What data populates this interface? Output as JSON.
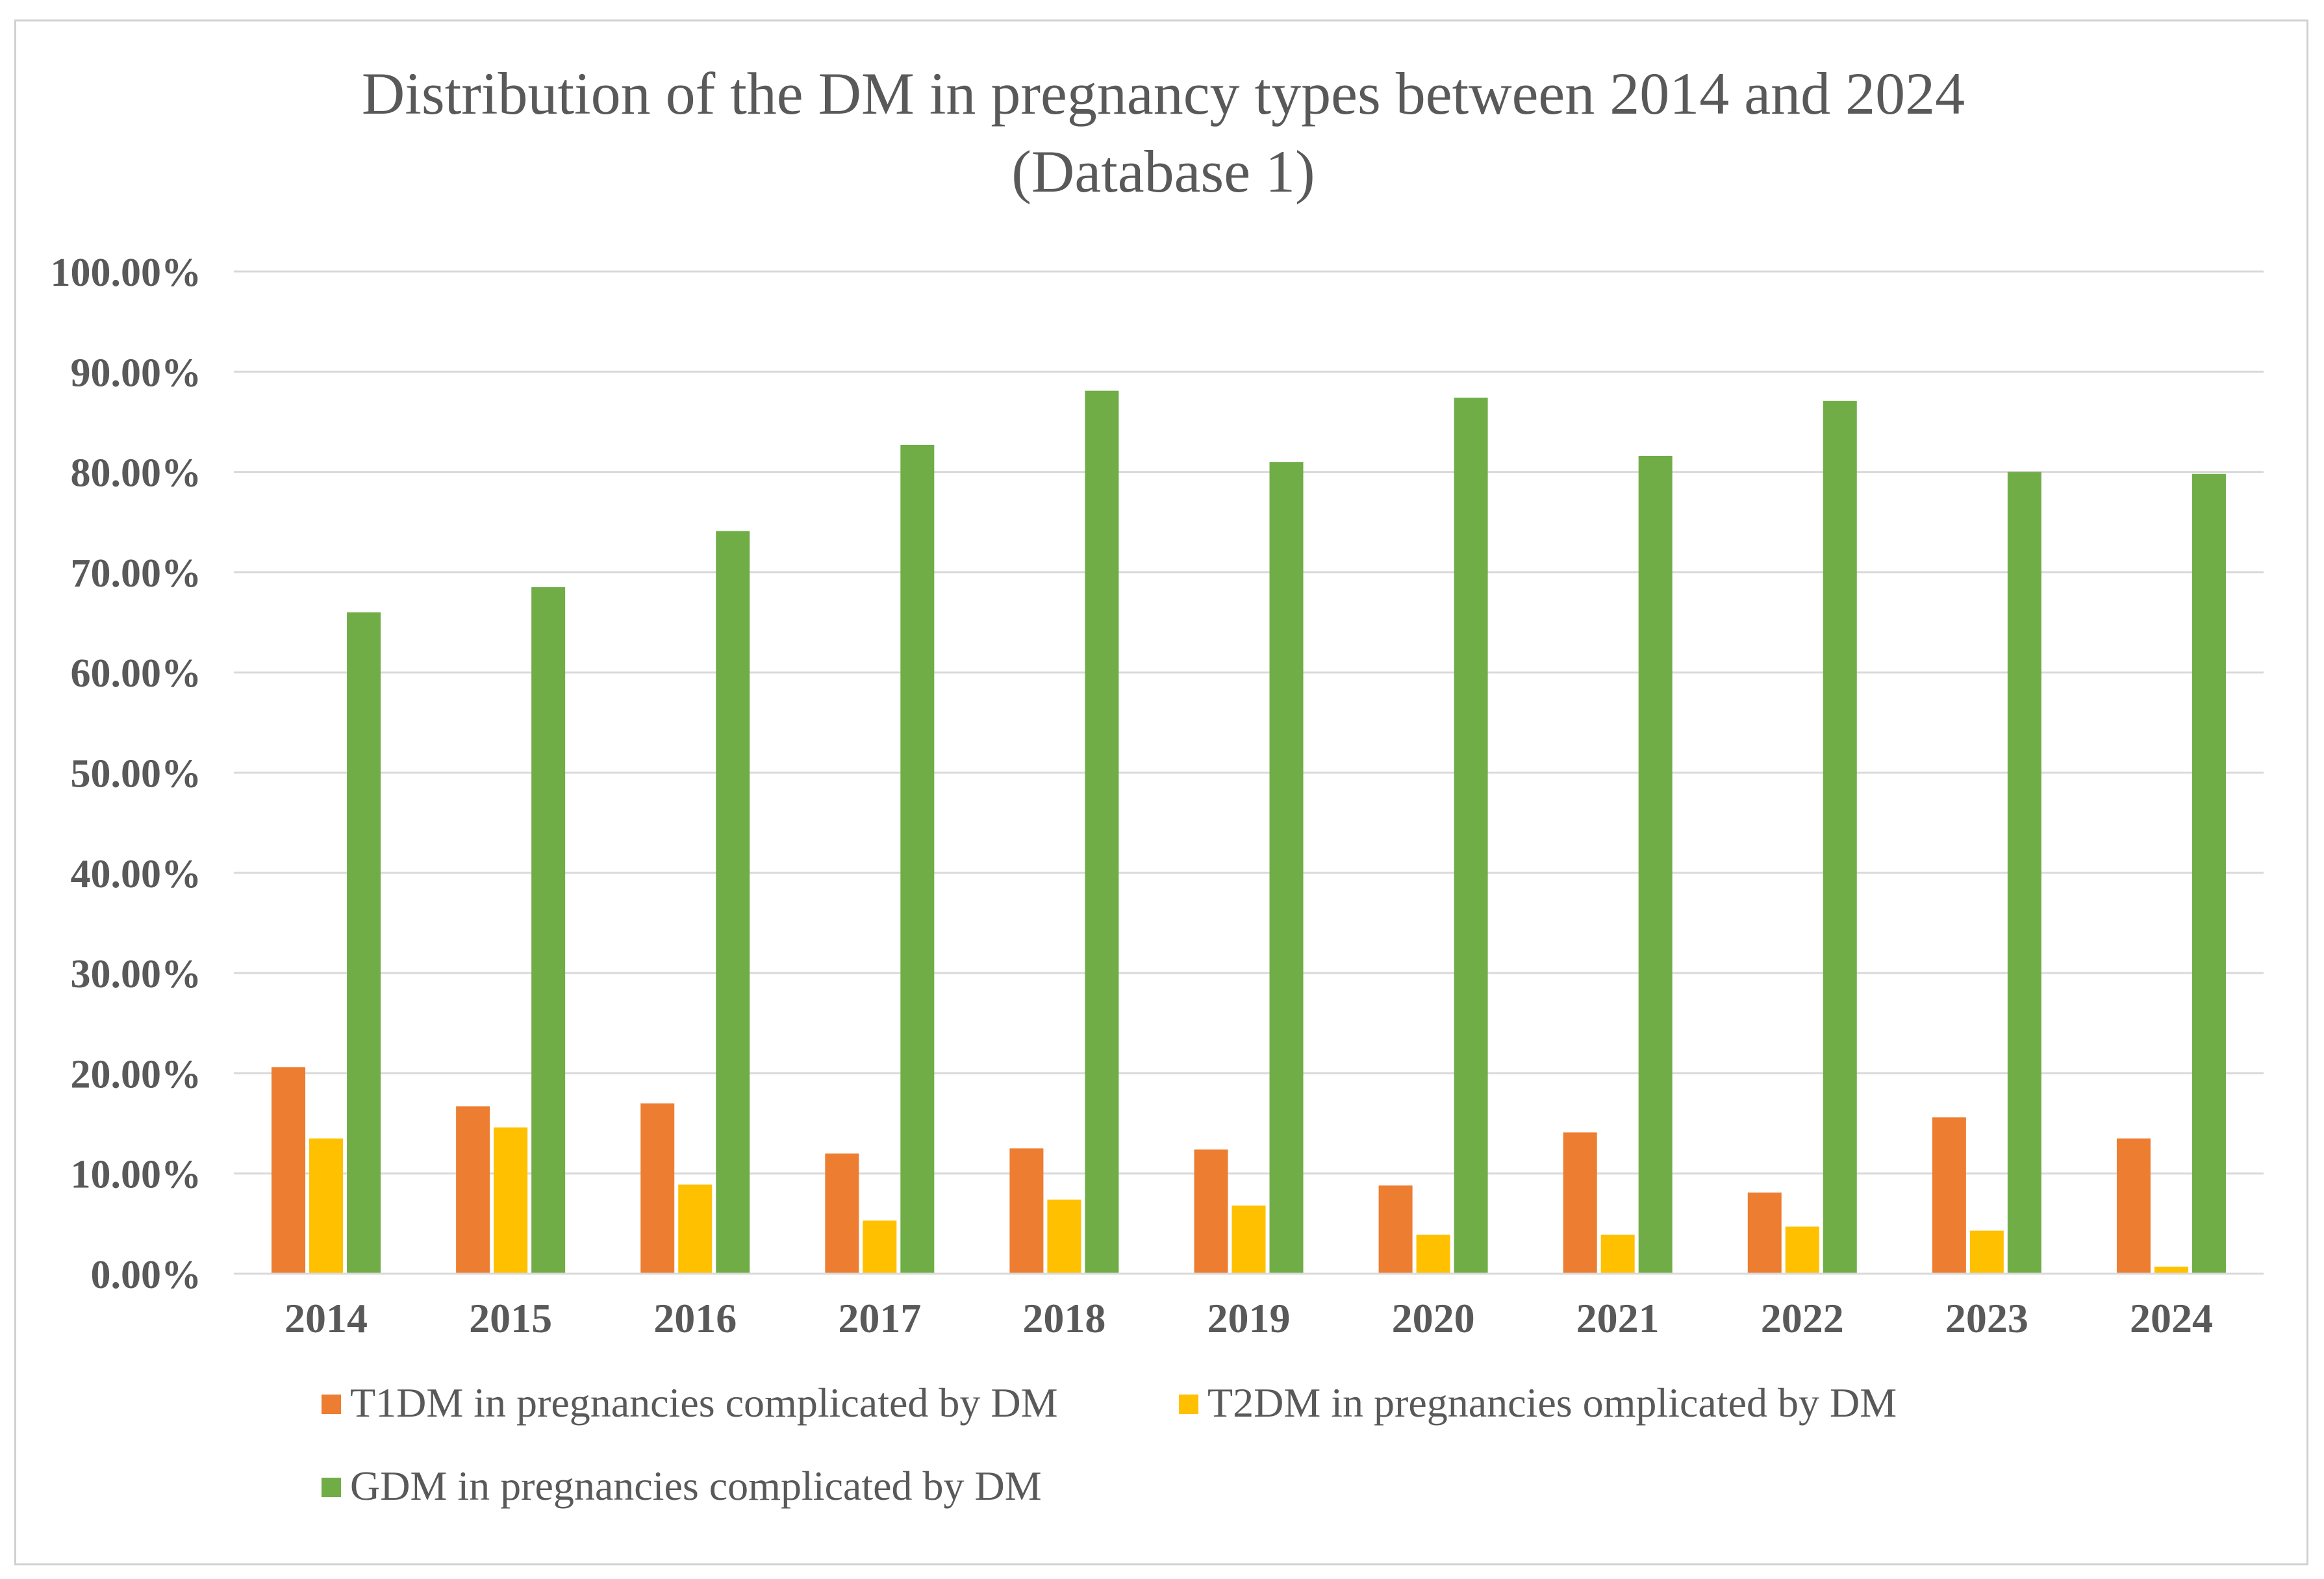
{
  "chart_data": {
    "type": "bar",
    "title": "Distribution  of the DM in  pregnancy types between 2014  and 2024",
    "subtitle": "(Database 1)",
    "xlabel": "",
    "ylabel": "",
    "ylim": [
      0,
      100
    ],
    "y_ticks": [
      0,
      10,
      20,
      30,
      40,
      50,
      60,
      70,
      80,
      90,
      100
    ],
    "y_tick_labels": [
      "0.00%",
      "10.00%",
      "20.00%",
      "30.00%",
      "40.00%",
      "50.00%",
      "60.00%",
      "70.00%",
      "80.00%",
      "90.00%",
      "100.00%"
    ],
    "grid": true,
    "legend_position": "bottom",
    "categories": [
      "2014",
      "2015",
      "2016",
      "2017",
      "2018",
      "2019",
      "2020",
      "2021",
      "2022",
      "2023",
      "2024"
    ],
    "series": [
      {
        "name": "T1DM in pregnancies complicated by DM",
        "color": "#ED7D31",
        "values": [
          20.6,
          16.7,
          17.0,
          12.0,
          12.5,
          12.4,
          8.8,
          14.1,
          8.1,
          15.6,
          13.5
        ]
      },
      {
        "name": "T2DM in pregnancies omplicated by DM",
        "color": "#FFC000",
        "values": [
          13.5,
          14.6,
          8.9,
          5.3,
          7.4,
          6.8,
          3.9,
          3.9,
          4.7,
          4.3,
          0.7
        ]
      },
      {
        "name": "GDM in pregnancies complicated by DM",
        "color": "#70AD47",
        "values": [
          66.0,
          68.5,
          74.1,
          82.7,
          88.1,
          81.0,
          87.4,
          81.6,
          87.1,
          80.0,
          79.8
        ]
      }
    ]
  },
  "style": {
    "gridline_color": "#d9d9d9",
    "axis_line_color": "#d9d9d9"
  }
}
